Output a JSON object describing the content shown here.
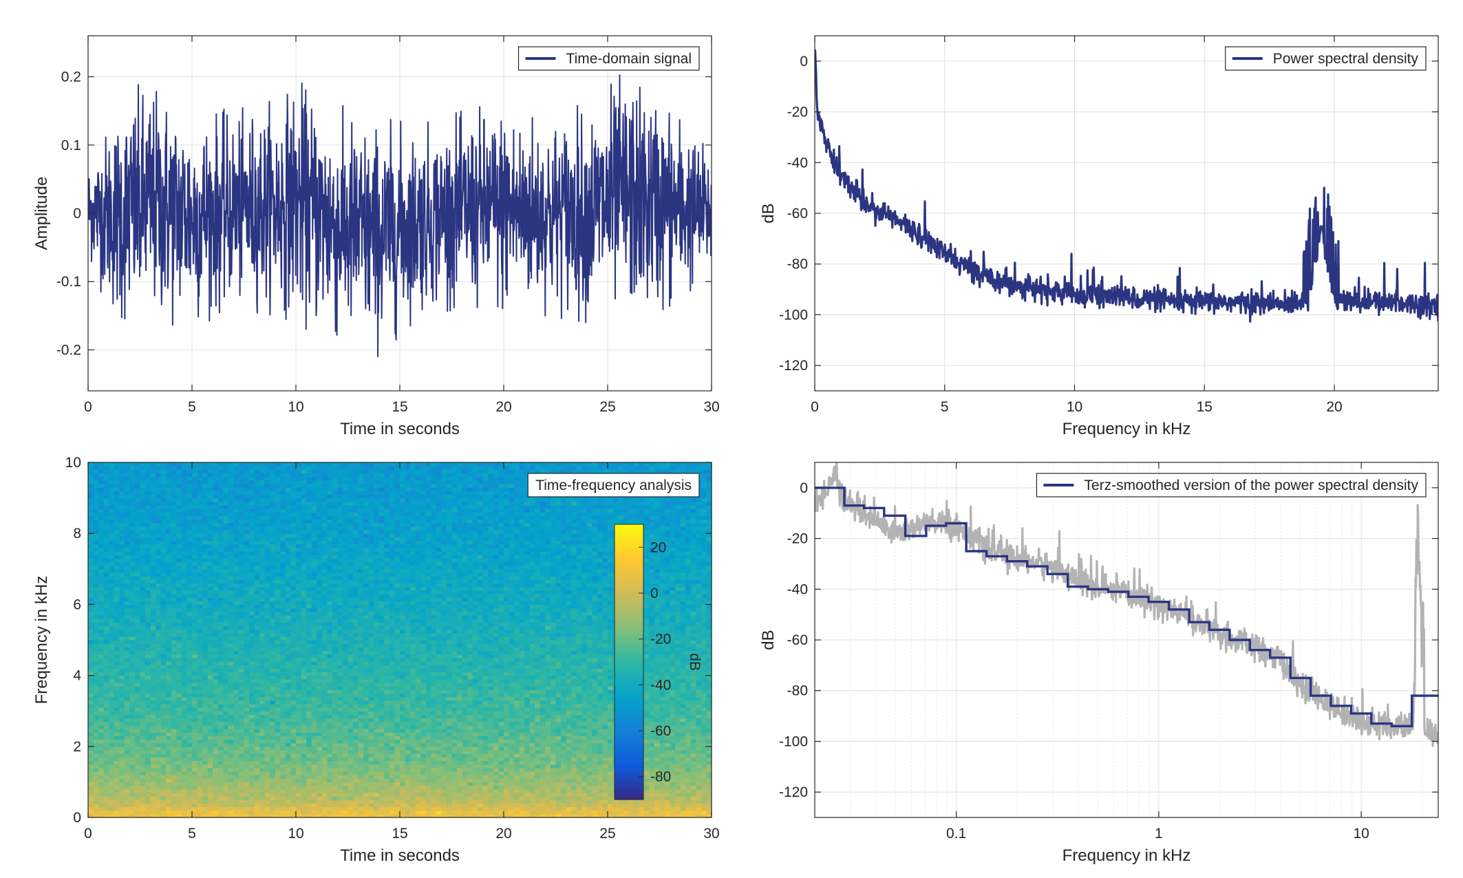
{
  "chart_data": [
    {
      "id": "time-domain",
      "type": "line",
      "title": "",
      "xlabel": "Time in seconds",
      "ylabel": "Amplitude",
      "xlim": [
        0,
        30
      ],
      "ylim": [
        -0.26,
        0.26
      ],
      "xticks": [
        0,
        5,
        10,
        15,
        20,
        25,
        30
      ],
      "yticks": [
        -0.2,
        -0.1,
        0,
        0.1,
        0.2
      ],
      "grid": true,
      "legend": {
        "position": "top-right",
        "entries": [
          "Time-domain signal"
        ]
      },
      "series": [
        {
          "name": "Time-domain signal",
          "color": "#2b3582",
          "envelope": {
            "x": [
              0,
              1.5,
              3,
              5,
              7,
              9,
              10,
              12,
              14,
              16,
              18,
              20,
              22,
              24,
              25.8,
              28,
              30
            ],
            "upper": [
              0.08,
              0.17,
              0.2,
              0.16,
              0.15,
              0.17,
              0.2,
              0.16,
              0.14,
              0.13,
              0.15,
              0.17,
              0.15,
              0.16,
              0.21,
              0.17,
              0.09
            ],
            "lower": [
              -0.07,
              -0.18,
              -0.17,
              -0.17,
              -0.14,
              -0.15,
              -0.16,
              -0.2,
              -0.21,
              -0.15,
              -0.14,
              -0.16,
              -0.15,
              -0.16,
              -0.16,
              -0.15,
              -0.09
            ]
          }
        }
      ]
    },
    {
      "id": "psd",
      "type": "line",
      "title": "",
      "xlabel": "Frequency in kHz",
      "ylabel": "dB",
      "xlim": [
        0,
        24
      ],
      "ylim": [
        -130,
        10
      ],
      "xticks": [
        0,
        5,
        10,
        15,
        20
      ],
      "yticks": [
        -120,
        -100,
        -80,
        -60,
        -40,
        -20,
        0
      ],
      "grid": true,
      "legend": {
        "position": "top-right",
        "entries": [
          "Power spectral density"
        ]
      },
      "series": [
        {
          "name": "Power spectral density",
          "color": "#2b3582",
          "x": [
            0,
            0.1,
            0.5,
            1,
            2,
            3,
            4,
            5,
            6,
            7,
            8,
            10,
            12,
            14,
            16,
            18,
            19,
            19.5,
            20,
            21,
            22,
            24
          ],
          "y": [
            5,
            -20,
            -35,
            -45,
            -56,
            -62,
            -68,
            -76,
            -82,
            -86,
            -89,
            -92,
            -93,
            -95,
            -95,
            -96,
            -94,
            -65,
            -94,
            -95,
            -95,
            -96
          ]
        }
      ]
    },
    {
      "id": "spectrogram",
      "type": "heatmap",
      "title": "",
      "xlabel": "Time in seconds",
      "ylabel": "Frequency in kHz",
      "xlim": [
        0,
        30
      ],
      "ylim": [
        0,
        10
      ],
      "xticks": [
        0,
        5,
        10,
        15,
        20,
        25,
        30
      ],
      "yticks": [
        0,
        2,
        4,
        6,
        8,
        10
      ],
      "legend": {
        "position": "top-right",
        "entries": [
          "Time-frequency analysis"
        ]
      },
      "colorbar": {
        "label": "dB",
        "range": [
          -90,
          30
        ],
        "ticks": [
          20,
          0,
          -20,
          -40,
          -60,
          -80
        ],
        "colormap": [
          "#352a87",
          "#0f5cdd",
          "#1481d6",
          "#06a4ca",
          "#2eb7a4",
          "#87bf77",
          "#d1bb59",
          "#fec832",
          "#f9fb0e"
        ]
      },
      "profile": {
        "frequency_khz": [
          0,
          0.2,
          0.5,
          1,
          1.5,
          2,
          3,
          4,
          5,
          6,
          8,
          10
        ],
        "level_db": [
          10,
          5,
          -5,
          -12,
          -18,
          -22,
          -28,
          -32,
          -36,
          -40,
          -46,
          -50
        ]
      }
    },
    {
      "id": "terz",
      "type": "line",
      "title": "",
      "xlabel": "Frequency in kHz",
      "ylabel": "dB",
      "xscale": "log",
      "xlim": [
        0.02,
        24
      ],
      "ylim": [
        -130,
        10
      ],
      "xticks": [
        0.1,
        1,
        10
      ],
      "xticklabels": [
        "0.1",
        "1",
        "10"
      ],
      "yticks": [
        -120,
        -100,
        -80,
        -60,
        -40,
        -20,
        0
      ],
      "grid": true,
      "legend": {
        "position": "top-right",
        "entries": [
          "Terz-smoothed version of the power spectral density"
        ]
      },
      "series": [
        {
          "name": "Terz-smoothed version of the power spectral density",
          "color": "#2b3582",
          "step": true,
          "edges": [
            0.02,
            0.028,
            0.035,
            0.044,
            0.056,
            0.071,
            0.089,
            0.112,
            0.141,
            0.178,
            0.224,
            0.282,
            0.355,
            0.447,
            0.562,
            0.708,
            0.891,
            1.122,
            1.413,
            1.778,
            2.239,
            2.818,
            3.548,
            4.467,
            5.623,
            7.079,
            8.913,
            11.22,
            14.13,
            17.78,
            24
          ],
          "values": [
            0,
            -7,
            -8,
            -11,
            -19,
            -15,
            -14,
            -25,
            -27,
            -29,
            -31,
            -34,
            -39,
            -40,
            -41,
            -43,
            -45,
            -48,
            -53,
            -56,
            -60,
            -64,
            -67,
            -75,
            -82,
            -86,
            -89,
            -93,
            -94,
            -82
          ]
        },
        {
          "name": "",
          "color": "#b3b3b3",
          "x": [
            0.02,
            0.025,
            0.028,
            0.035,
            0.05,
            0.07,
            0.1,
            0.15,
            0.2,
            0.3,
            0.5,
            0.7,
            1,
            1.5,
            2,
            3,
            4,
            5,
            7,
            10,
            15,
            18,
            19,
            20,
            24
          ],
          "y": [
            -8,
            5,
            -5,
            -10,
            -18,
            -14,
            -15,
            -25,
            -28,
            -31,
            -40,
            -42,
            -46,
            -52,
            -58,
            -63,
            -68,
            -78,
            -86,
            -92,
            -95,
            -93,
            -50,
            -95,
            -98
          ]
        }
      ]
    }
  ]
}
